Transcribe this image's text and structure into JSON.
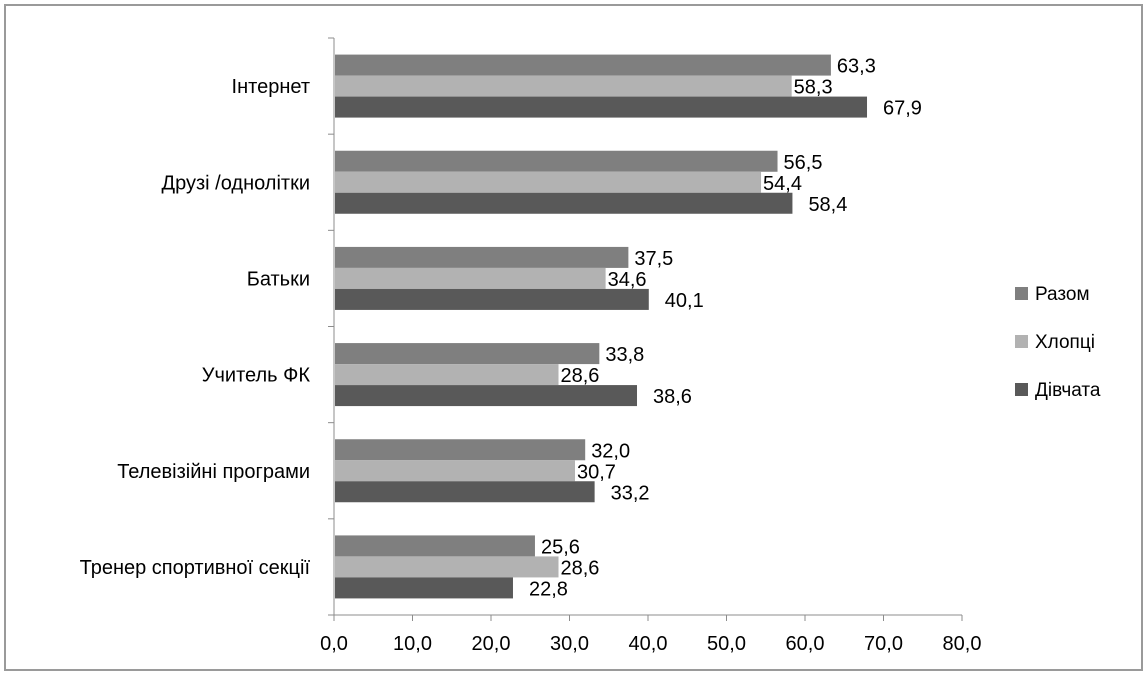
{
  "chart_data": {
    "type": "bar",
    "orientation": "horizontal",
    "categories": [
      "Інтернет",
      "Друзі /однолітки",
      "Батьки",
      "Учитель ФК",
      "Телевізійні програми",
      "Тренер спортивної секції"
    ],
    "series": [
      {
        "name": "Разом",
        "color": "#7f7f7f",
        "values": [
          63.3,
          56.5,
          37.5,
          33.8,
          32.0,
          25.6
        ],
        "labels": [
          "63,3",
          "56,5",
          "37,5",
          "33,8",
          "32,0",
          "25,6"
        ]
      },
      {
        "name": "Хлопці",
        "color": "#b2b2b2",
        "values": [
          58.3,
          54.4,
          34.6,
          28.6,
          30.7,
          28.6
        ],
        "labels": [
          "58,3",
          "54,4",
          "34,6",
          "28,6",
          "30,7",
          "28,6"
        ]
      },
      {
        "name": "Дівчата",
        "color": "#595959",
        "values": [
          67.9,
          58.4,
          40.1,
          38.6,
          33.2,
          22.8
        ],
        "labels": [
          "67,9",
          "58,4",
          "40,1",
          "38,6",
          "33,2",
          "22,8"
        ]
      }
    ],
    "xlim": [
      0,
      80
    ],
    "xticks": [
      "0,0",
      "10,0",
      "20,0",
      "30,0",
      "40,0",
      "50,0",
      "60,0",
      "70,0",
      "80,0"
    ],
    "xlabel": "",
    "ylabel": "",
    "title": "",
    "grid": false,
    "legend_position": "right"
  }
}
